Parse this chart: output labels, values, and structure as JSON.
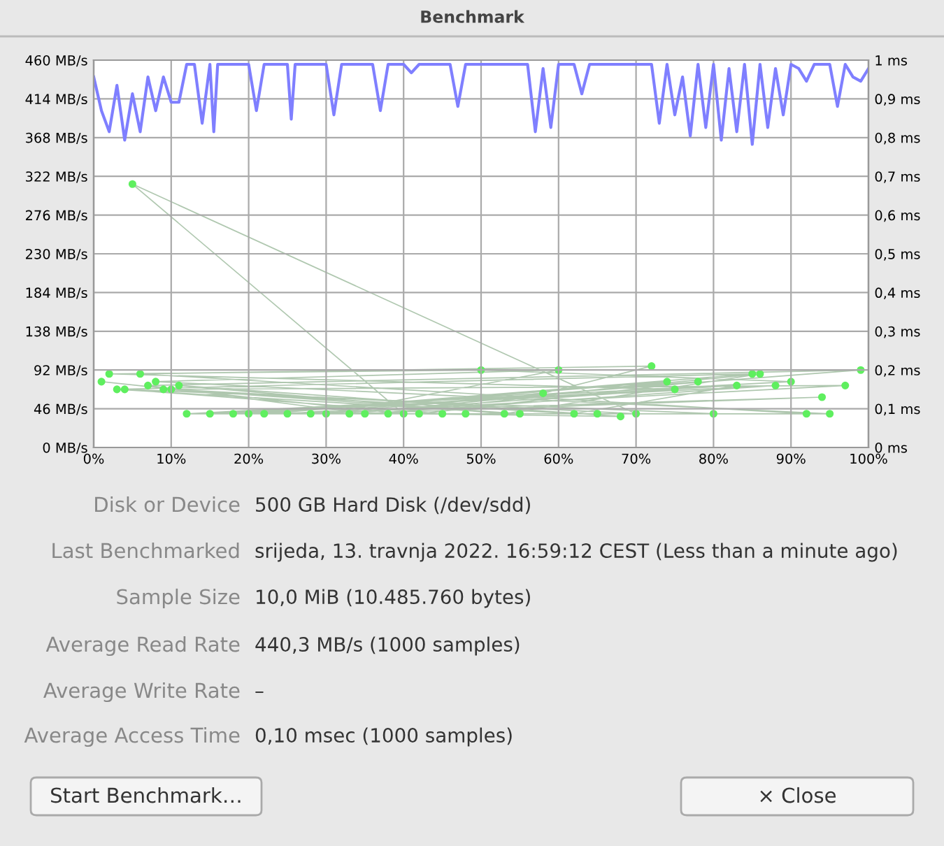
{
  "chart_data": {
    "type": "line",
    "title": "Benchmark",
    "xlim": [
      0,
      100
    ],
    "ylim": [
      0,
      460
    ],
    "y2lim": [
      0,
      1
    ],
    "xticks": [
      {
        "value": 0,
        "label": "0%"
      },
      {
        "value": 10,
        "label": "10%"
      },
      {
        "value": 20,
        "label": "20%"
      },
      {
        "value": 30,
        "label": "30%"
      },
      {
        "value": 40,
        "label": "40%"
      },
      {
        "value": 50,
        "label": "50%"
      },
      {
        "value": 60,
        "label": "60%"
      },
      {
        "value": 70,
        "label": "70%"
      },
      {
        "value": 80,
        "label": "80%"
      },
      {
        "value": 90,
        "label": "90%"
      },
      {
        "value": 100,
        "label": "100%"
      }
    ],
    "yticks": [
      {
        "value": 0,
        "label": "0 MB/s"
      },
      {
        "value": 46,
        "label": "46 MB/s"
      },
      {
        "value": 92,
        "label": "92 MB/s"
      },
      {
        "value": 138,
        "label": "138 MB/s"
      },
      {
        "value": 184,
        "label": "184 MB/s"
      },
      {
        "value": 230,
        "label": "230 MB/s"
      },
      {
        "value": 276,
        "label": "276 MB/s"
      },
      {
        "value": 322,
        "label": "322 MB/s"
      },
      {
        "value": 368,
        "label": "368 MB/s"
      },
      {
        "value": 414,
        "label": "414 MB/s"
      },
      {
        "value": 460,
        "label": "460 MB/s"
      }
    ],
    "y2ticks": [
      {
        "value": 0,
        "label": "0 ms"
      },
      {
        "value": 0.1,
        "label": "0,1 ms"
      },
      {
        "value": 0.2,
        "label": "0,2 ms"
      },
      {
        "value": 0.3,
        "label": "0,3 ms"
      },
      {
        "value": 0.4,
        "label": "0,4 ms"
      },
      {
        "value": 0.5,
        "label": "0,5 ms"
      },
      {
        "value": 0.6,
        "label": "0,6 ms"
      },
      {
        "value": 0.7,
        "label": "0,7 ms"
      },
      {
        "value": 0.8,
        "label": "0,8 ms"
      },
      {
        "value": 0.9,
        "label": "0,9 ms"
      },
      {
        "value": 1,
        "label": "1 ms"
      }
    ],
    "grid": true,
    "series": [
      {
        "color": "#7f7fff",
        "marker": "none",
        "x": [
          0,
          1,
          2,
          3,
          4,
          5,
          6,
          7,
          8,
          9,
          10,
          11,
          12,
          13,
          14,
          15,
          15.5,
          16,
          20,
          21,
          22,
          25,
          25.5,
          26,
          30,
          31,
          32,
          36,
          37,
          38,
          40,
          41,
          42,
          46,
          47,
          48,
          56,
          57,
          58,
          59,
          60,
          62,
          63,
          64,
          72,
          73,
          74,
          75,
          76,
          77,
          78,
          79,
          80,
          81,
          82,
          83,
          84,
          85,
          86,
          87,
          88,
          89,
          90,
          91,
          92,
          93,
          95,
          96,
          97,
          98,
          99,
          100
        ],
        "values": [
          440,
          400,
          375,
          430,
          365,
          420,
          375,
          440,
          400,
          440,
          410,
          410,
          455,
          455,
          385,
          455,
          375,
          455,
          455,
          400,
          455,
          455,
          390,
          455,
          455,
          395,
          455,
          455,
          400,
          455,
          455,
          445,
          455,
          455,
          405,
          455,
          455,
          375,
          450,
          380,
          455,
          455,
          420,
          455,
          455,
          385,
          455,
          395,
          440,
          370,
          455,
          380,
          455,
          365,
          450,
          375,
          455,
          360,
          455,
          380,
          450,
          395,
          455,
          450,
          435,
          455,
          455,
          405,
          455,
          440,
          435,
          450
        ]
      },
      {
        "type": "line",
        "axis": "y2",
        "color": "#5fef5f",
        "marker": "circle",
        "x": [
          1,
          40,
          5,
          70,
          10,
          55,
          3,
          85,
          20,
          95,
          8,
          60,
          30,
          75,
          2,
          50,
          90,
          12,
          65,
          45,
          4,
          80,
          25,
          99,
          7,
          35,
          88,
          15,
          58,
          72,
          6,
          92,
          48,
          18,
          83,
          62,
          9,
          97,
          28,
          78,
          42,
          68,
          11,
          53,
          86,
          33,
          94,
          22,
          74,
          38
        ],
        "values": [
          0.17,
          0.087,
          0.68,
          0.087,
          0.15,
          0.087,
          0.15,
          0.19,
          0.087,
          0.087,
          0.17,
          0.2,
          0.087,
          0.15,
          0.19,
          0.2,
          0.17,
          0.087,
          0.087,
          0.087,
          0.15,
          0.087,
          0.087,
          0.2,
          0.16,
          0.087,
          0.16,
          0.087,
          0.14,
          0.21,
          0.19,
          0.087,
          0.087,
          0.087,
          0.16,
          0.087,
          0.15,
          0.16,
          0.087,
          0.17,
          0.087,
          0.08,
          0.16,
          0.087,
          0.19,
          0.087,
          0.13,
          0.087,
          0.17,
          0.087
        ]
      }
    ],
    "annotations": [
      "Disk or Device",
      "500 GB Hard Disk (/dev/sdd)",
      "Last Benchmarked",
      "srijeda, 13. travnja 2022. 16:59:12 CEST (Less than a minute ago)",
      "Sample Size",
      "10,0 MiB (10.485.760 bytes)",
      "Average Read Rate",
      "440,3 MB/s (1000 samples)",
      "Average Write Rate",
      "–",
      "Average Access Time",
      "0,10 msec (1000 samples)",
      "Start Benchmark…",
      "× Close"
    ]
  }
}
